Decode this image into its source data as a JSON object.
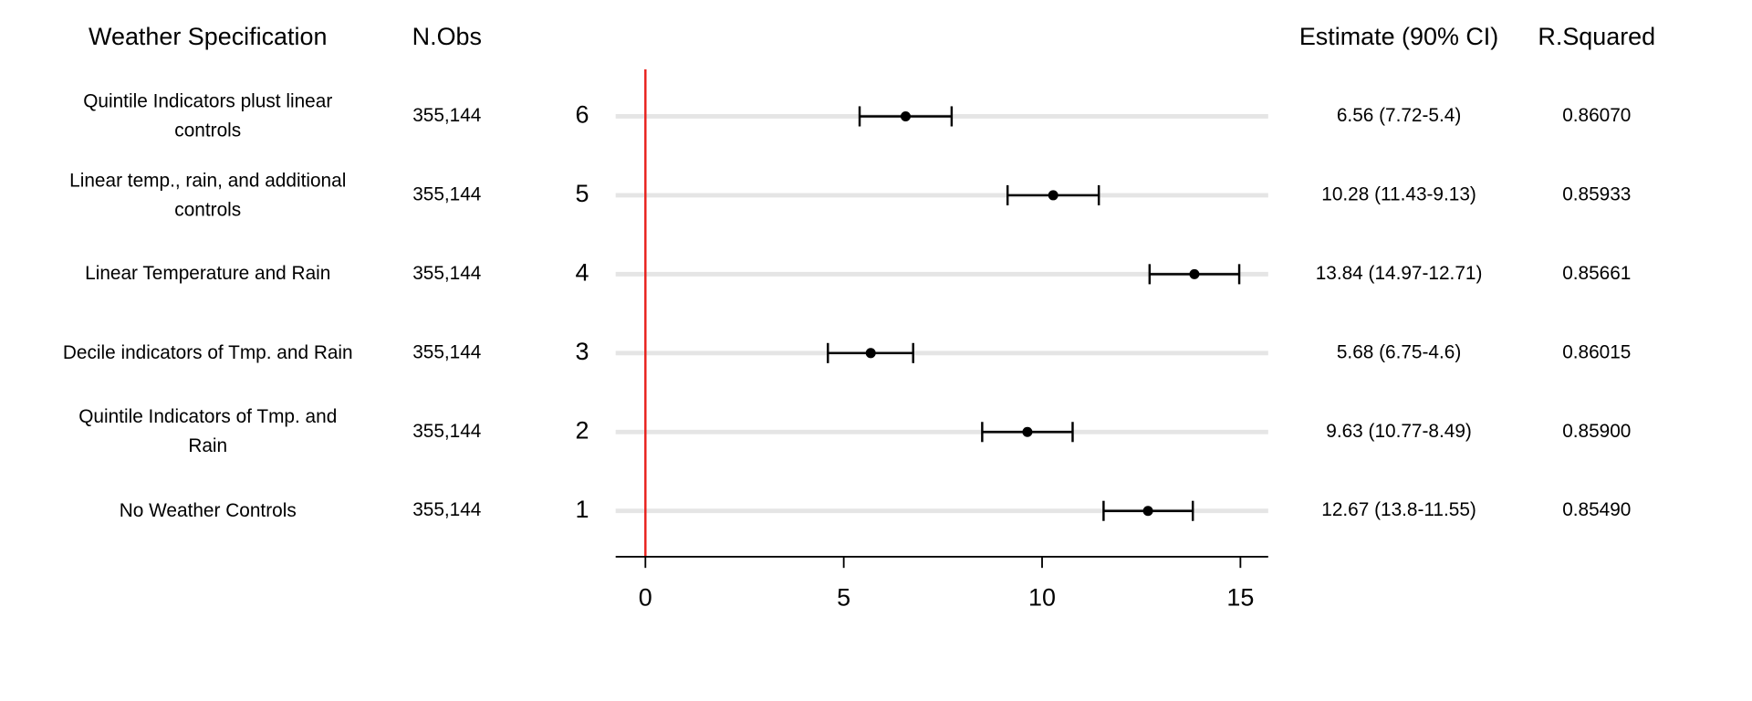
{
  "chart_data": {
    "type": "forest",
    "column_headers": [
      "Weather Specification",
      "N.Obs",
      "Estimate (90% CI)",
      "R.Squared"
    ],
    "categories": [
      "6",
      "5",
      "4",
      "3",
      "2",
      "1"
    ],
    "specifications": [
      "Quintile Indicators plust linear\ncontrols",
      "Linear temp., rain, and additional\ncontrols",
      "Linear Temperature and Rain",
      "Decile indicators of Tmp. and Rain",
      "Quintile Indicators of Tmp. and\nRain",
      "No Weather Controls"
    ],
    "n_obs": [
      "355,144",
      "355,144",
      "355,144",
      "355,144",
      "355,144",
      "355,144"
    ],
    "values": [
      6.56,
      10.28,
      13.84,
      5.68,
      9.63,
      12.67
    ],
    "upper": [
      7.72,
      11.43,
      14.97,
      6.75,
      10.77,
      13.8
    ],
    "lower": [
      5.4,
      9.13,
      12.71,
      4.6,
      8.49,
      11.55
    ],
    "value_labels": [
      "6.56 (7.72-5.4)",
      "10.28 (11.43-9.13)",
      "13.84 (14.97-12.71)",
      "5.68 (6.75-4.6)",
      "9.63 (10.77-8.49)",
      "12.67 (13.8-11.55)"
    ],
    "r_squared": [
      "0.86070",
      "0.85933",
      "0.85661",
      "0.86015",
      "0.85900",
      "0.85490"
    ],
    "color": "#000000",
    "reference_line": 0,
    "reference_color": "#e8211d",
    "xlim": [
      -0.75,
      15.7
    ],
    "xticks": [
      0,
      5,
      10,
      15
    ],
    "grid": true
  }
}
